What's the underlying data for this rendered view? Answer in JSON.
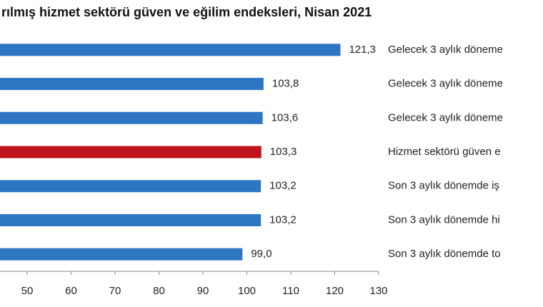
{
  "chart_data": {
    "type": "barh",
    "title": "rılmış hizmet sektörü güven ve eğilim endeksleri, Nisan 2021",
    "categories": [
      "Gelecek 3 aylık döneme",
      "Gelecek 3 aylık döneme",
      "Gelecek 3 aylık döneme",
      "Hizmet sektörü güven e",
      "Son 3 aylık dönemde iş",
      "Son 3 aylık dönemde hi",
      "Son 3 aylık dönemde to"
    ],
    "values": [
      121.3,
      103.8,
      103.6,
      103.3,
      103.2,
      103.2,
      99.0
    ],
    "value_labels": [
      "121,3",
      "103,8",
      "103,6",
      "103,3",
      "103,2",
      "103,2",
      "99,0"
    ],
    "colors": [
      "#2e75c2",
      "#2e75c2",
      "#2e75c2",
      "#c0141c",
      "#2e75c2",
      "#2e75c2",
      "#2e75c2"
    ],
    "xlim": [
      40,
      130
    ],
    "xticks": [
      50,
      60,
      70,
      80,
      90,
      100,
      110,
      120,
      130
    ]
  }
}
